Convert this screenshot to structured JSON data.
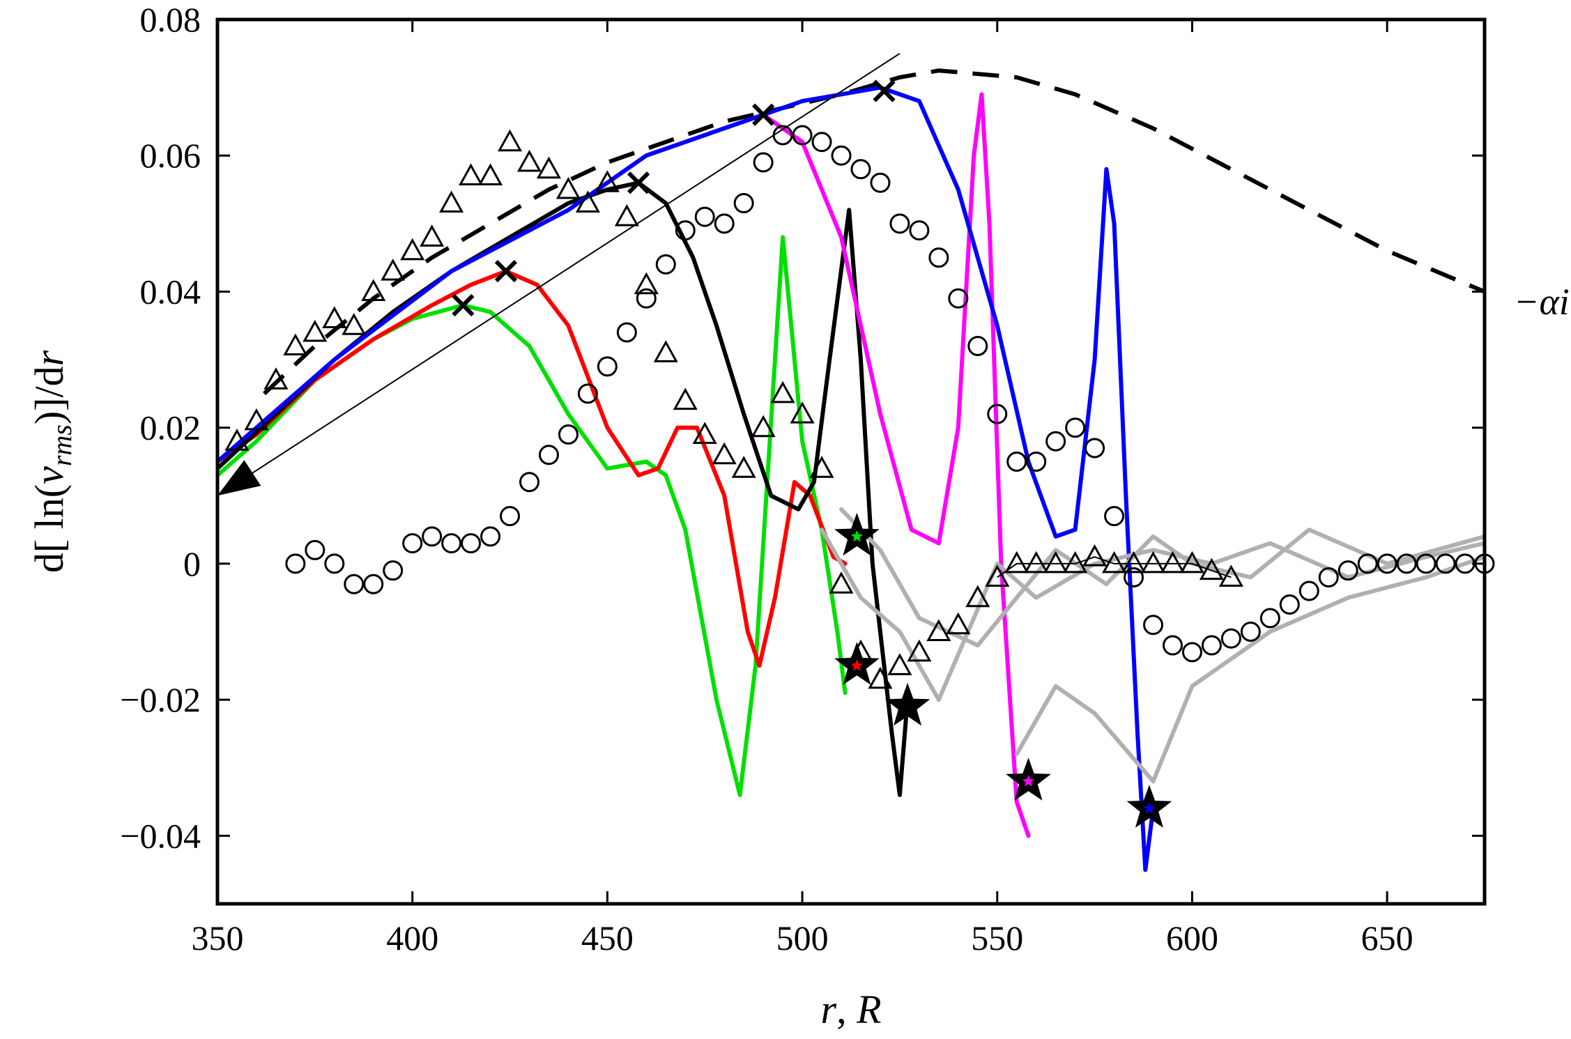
{
  "chart_data": {
    "type": "line",
    "xlabel": "r, R",
    "ylabel": "d[ ln(v_rms)]/dr",
    "xlim": [
      350,
      675
    ],
    "ylim": [
      -0.05,
      0.08
    ],
    "xticks": [
      350,
      400,
      450,
      500,
      550,
      600,
      650
    ],
    "yticks": [
      -0.04,
      -0.02,
      0,
      0.02,
      0.04,
      0.06,
      0.08
    ],
    "ytick_labels": [
      "−0.04",
      "−0.02",
      "0",
      "0.02",
      "0.04",
      "0.06",
      "0.08"
    ],
    "grid": false,
    "annotation": "−αi",
    "series": [
      {
        "style": "dashed",
        "color": "#000000",
        "x": [
          362,
          375,
          390,
          405,
          420,
          435,
          450,
          465,
          480,
          495,
          510,
          525,
          535,
          545,
          555,
          570,
          590,
          610,
          630,
          650,
          675
        ],
        "y": [
          0.025,
          0.032,
          0.039,
          0.045,
          0.05,
          0.055,
          0.059,
          0.062,
          0.065,
          0.067,
          0.069,
          0.0715,
          0.0725,
          0.072,
          0.0715,
          0.069,
          0.064,
          0.058,
          0.052,
          0.046,
          0.04
        ]
      },
      {
        "color": "#00e000",
        "x": [
          350,
          360,
          375,
          390,
          400,
          413,
          420,
          430,
          440,
          450,
          460,
          465,
          470,
          478,
          484,
          488,
          495,
          500,
          505,
          509,
          511
        ],
        "y": [
          0.013,
          0.018,
          0.027,
          0.033,
          0.036,
          0.038,
          0.037,
          0.032,
          0.022,
          0.014,
          0.015,
          0.013,
          0.005,
          -0.02,
          -0.034,
          -0.015,
          0.048,
          0.018,
          0.005,
          -0.01,
          -0.019
        ]
      },
      {
        "color": "#ff0000",
        "x": [
          350,
          360,
          375,
          390,
          405,
          415,
          424,
          432,
          440,
          450,
          458,
          463,
          468,
          473,
          480,
          486,
          489,
          493,
          498,
          502,
          508,
          511
        ],
        "y": [
          0.015,
          0.019,
          0.027,
          0.033,
          0.038,
          0.041,
          0.043,
          0.041,
          0.035,
          0.02,
          0.013,
          0.014,
          0.02,
          0.02,
          0.01,
          -0.01,
          -0.015,
          -0.005,
          0.012,
          0.01,
          0.001,
          0.0
        ]
      },
      {
        "color": "#000000",
        "x": [
          350,
          365,
          380,
          395,
          410,
          425,
          440,
          450,
          458,
          465,
          472,
          478,
          485,
          492,
          499,
          503,
          507,
          512,
          515,
          518,
          521,
          523,
          525,
          527
        ],
        "y": [
          0.014,
          0.022,
          0.03,
          0.037,
          0.043,
          0.048,
          0.053,
          0.055,
          0.056,
          0.053,
          0.045,
          0.035,
          0.022,
          0.01,
          0.008,
          0.012,
          0.03,
          0.052,
          0.03,
          0.0,
          -0.015,
          -0.025,
          -0.034,
          -0.02
        ]
      },
      {
        "color": "#ff00ff",
        "x": [
          350,
          380,
          410,
          440,
          460,
          475,
          490,
          500,
          510,
          520,
          528,
          535,
          540,
          544,
          546,
          548,
          551,
          555,
          558
        ],
        "y": [
          0.015,
          0.03,
          0.043,
          0.052,
          0.06,
          0.063,
          0.066,
          0.062,
          0.048,
          0.022,
          0.005,
          0.003,
          0.02,
          0.06,
          0.069,
          0.05,
          0.0,
          -0.035,
          -0.04
        ]
      },
      {
        "color": "#0000ff",
        "x": [
          350,
          380,
          410,
          440,
          460,
          475,
          490,
          500,
          510,
          520,
          530,
          540,
          550,
          558,
          565,
          570,
          575,
          578,
          580,
          583,
          586,
          588,
          590
        ],
        "y": [
          0.015,
          0.03,
          0.043,
          0.052,
          0.06,
          0.063,
          0.066,
          0.068,
          0.069,
          0.07,
          0.068,
          0.055,
          0.035,
          0.015,
          0.004,
          0.005,
          0.03,
          0.058,
          0.05,
          0.01,
          -0.025,
          -0.045,
          -0.036
        ]
      },
      {
        "color": "#b0b0b0",
        "x": [
          505,
          515,
          525,
          535,
          550,
          560,
          575,
          590,
          605,
          620,
          640,
          660,
          675
        ],
        "y": [
          0.005,
          -0.005,
          -0.01,
          -0.02,
          0.0,
          -0.005,
          0.0,
          0.002,
          0.0,
          0.003,
          -0.002,
          0.001,
          0.003
        ]
      },
      {
        "color": "#b0b0b0",
        "x": [
          510,
          520,
          530,
          545,
          555,
          565,
          578,
          590,
          600,
          615,
          630,
          650,
          675
        ],
        "y": [
          0.008,
          0.002,
          -0.008,
          -0.012,
          -0.005,
          0.002,
          -0.003,
          0.004,
          0.0,
          -0.002,
          0.005,
          0.0,
          0.004
        ]
      },
      {
        "color": "#b0b0b0",
        "x": [
          555,
          565,
          575,
          590,
          600,
          620,
          640,
          660,
          675
        ],
        "y": [
          -0.028,
          -0.018,
          -0.022,
          -0.032,
          -0.018,
          -0.01,
          -0.005,
          -0.002,
          0.001
        ]
      }
    ],
    "markers": {
      "cross": {
        "x": [
          413,
          424,
          458,
          490,
          521
        ],
        "y": [
          0.038,
          0.043,
          0.056,
          0.066,
          0.0695
        ]
      },
      "star": {
        "x": [
          514,
          514,
          527,
          558,
          589
        ],
        "y": [
          0.004,
          -0.015,
          -0.021,
          -0.032,
          -0.036
        ],
        "fill_colors": [
          "#00e000",
          "#ff0000",
          "#000000",
          "#ff00ff",
          "#0000ff"
        ]
      },
      "triangle": {
        "x": [
          355,
          360,
          365,
          370,
          375,
          380,
          385,
          390,
          395,
          400,
          405,
          410,
          415,
          420,
          425,
          430,
          435,
          440,
          445,
          450,
          455,
          460,
          465,
          470,
          475,
          480,
          485,
          490,
          495,
          500,
          505,
          510,
          515,
          520,
          525,
          530,
          535,
          540,
          545,
          550,
          555,
          560,
          565,
          570,
          575,
          580,
          585,
          590,
          595,
          600,
          605,
          610
        ],
        "y": [
          0.018,
          0.021,
          0.027,
          0.032,
          0.034,
          0.036,
          0.035,
          0.04,
          0.043,
          0.046,
          0.048,
          0.053,
          0.057,
          0.057,
          0.062,
          0.059,
          0.058,
          0.055,
          0.053,
          0.056,
          0.051,
          0.041,
          0.031,
          0.024,
          0.019,
          0.016,
          0.014,
          0.02,
          0.025,
          0.022,
          0.014,
          -0.003,
          -0.013,
          -0.017,
          -0.015,
          -0.013,
          -0.01,
          -0.009,
          -0.005,
          -0.002,
          0.0,
          0.0,
          0.0,
          0.0,
          0.001,
          0.0,
          0.0,
          0.0,
          0.0,
          0.0,
          -0.001,
          -0.002
        ]
      },
      "circle": {
        "x": [
          370,
          375,
          380,
          385,
          390,
          395,
          400,
          405,
          410,
          415,
          420,
          425,
          430,
          435,
          440,
          445,
          450,
          455,
          460,
          465,
          470,
          475,
          480,
          485,
          490,
          495,
          500,
          505,
          510,
          515,
          520,
          525,
          530,
          535,
          540,
          545,
          550,
          555,
          560,
          565,
          570,
          575,
          580,
          585,
          590,
          595,
          600,
          605,
          610,
          615,
          620,
          625,
          630,
          635,
          640,
          645,
          650,
          655,
          660,
          665,
          670,
          675
        ],
        "y": [
          0.0,
          0.002,
          0.0,
          -0.003,
          -0.003,
          -0.001,
          0.003,
          0.004,
          0.003,
          0.003,
          0.004,
          0.007,
          0.012,
          0.016,
          0.019,
          0.025,
          0.029,
          0.034,
          0.039,
          0.044,
          0.049,
          0.051,
          0.05,
          0.053,
          0.059,
          0.063,
          0.063,
          0.062,
          0.06,
          0.058,
          0.056,
          0.05,
          0.049,
          0.045,
          0.039,
          0.032,
          0.022,
          0.015,
          0.015,
          0.018,
          0.02,
          0.017,
          0.007,
          -0.002,
          -0.009,
          -0.012,
          -0.013,
          -0.012,
          -0.011,
          -0.01,
          -0.008,
          -0.006,
          -0.004,
          -0.002,
          -0.001,
          0.0,
          0.0,
          0.0,
          0.0,
          0.0,
          0.0,
          0.0
        ]
      }
    },
    "arrow": {
      "from": [
        525,
        0.075
      ],
      "to": [
        350,
        0.01
      ]
    }
  }
}
